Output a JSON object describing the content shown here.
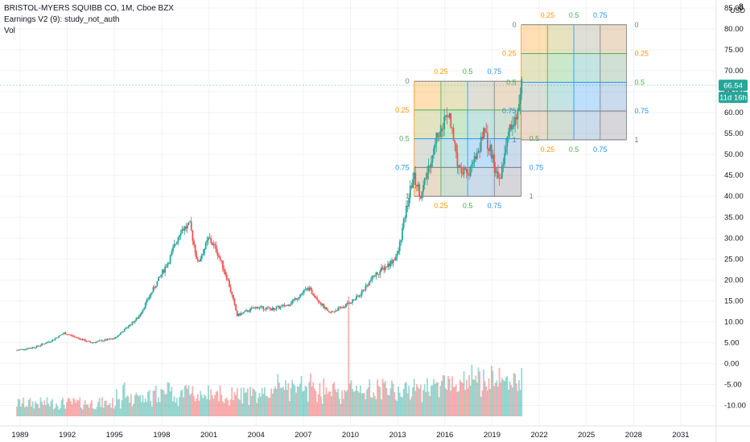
{
  "legend": {
    "line1": "BRISTOL-MYERS SQUIBB CO, 1M, Cboe BZX",
    "line2": "Earnings V2 (9): study_not_auth",
    "line3": "Vol"
  },
  "top_right": {
    "count": "8",
    "currency": "USD"
  },
  "price_badge": "66.54",
  "countdown_badge": "11d 16h",
  "colors": {
    "up": "#26a69a",
    "down": "#ef5350",
    "badge": "#26a69a",
    "grid": "#f0f3fa",
    "axis_text": "#131722",
    "fib_orange": "#ff9800",
    "fib_green": "#4caf50",
    "fib_blue": "#2196f3",
    "fib_gray": "#787b86"
  },
  "chart_data": {
    "type": "candlestick",
    "title": "BRISTOL-MYERS SQUIBB CO, 1M, Cboe BZX",
    "y_axis": {
      "ticks": [
        "85.00",
        "80.00",
        "75.00",
        "70.00",
        "65.00",
        "60.00",
        "55.00",
        "50.00",
        "45.00",
        "40.00",
        "35.00",
        "30.00",
        "25.00",
        "20.00",
        "15.00",
        "10.00",
        "5.00",
        "0.00",
        "-5.00",
        "-10.00"
      ],
      "range": [
        -14,
        86
      ]
    },
    "x_axis": {
      "ticks": [
        "1989",
        "1992",
        "1995",
        "1998",
        "2001",
        "2004",
        "2007",
        "2010",
        "2013",
        "2016",
        "2019",
        "2022",
        "2025",
        "2028",
        "2031"
      ],
      "range_years": [
        1988.7,
        2033.2
      ]
    },
    "last_price": 66.54,
    "price_anchors": [
      [
        1988.8,
        3.2
      ],
      [
        1990.0,
        4.0
      ],
      [
        1991.0,
        5.5
      ],
      [
        1991.8,
        7.3
      ],
      [
        1993.5,
        5.0
      ],
      [
        1995.0,
        6.0
      ],
      [
        1996.5,
        11.0
      ],
      [
        1997.5,
        18.0
      ],
      [
        1998.5,
        25.0
      ],
      [
        1999.2,
        32.0
      ],
      [
        1999.8,
        33.0
      ],
      [
        2000.3,
        24.0
      ],
      [
        2001.0,
        30.0
      ],
      [
        2001.5,
        27.0
      ],
      [
        2002.2,
        20.0
      ],
      [
        2002.8,
        11.5
      ],
      [
        2004.0,
        13.5
      ],
      [
        2005.0,
        13.0
      ],
      [
        2006.0,
        14.0
      ],
      [
        2007.3,
        18.0
      ],
      [
        2007.8,
        16.0
      ],
      [
        2008.6,
        12.0
      ],
      [
        2009.5,
        13.5
      ],
      [
        2010.5,
        16.0
      ],
      [
        2011.5,
        21.0
      ],
      [
        2012.5,
        24.0
      ],
      [
        2013.0,
        26.0
      ],
      [
        2013.5,
        36.0
      ],
      [
        2014.0,
        45.0
      ],
      [
        2014.5,
        40.0
      ],
      [
        2015.5,
        55.0
      ],
      [
        2016.3,
        60.0
      ],
      [
        2016.8,
        48.0
      ],
      [
        2017.5,
        45.0
      ],
      [
        2018.5,
        55.0
      ],
      [
        2019.0,
        50.0
      ],
      [
        2019.5,
        43.0
      ],
      [
        2020.0,
        55.0
      ],
      [
        2020.5,
        59.0
      ],
      [
        2020.9,
        66.5
      ]
    ],
    "volume_peaks": [
      [
        2009.9,
        16.0
      ],
      [
        2019.0,
        -0.5
      ],
      [
        2019.5,
        -1.0
      ],
      [
        2018.8,
        -3.5
      ]
    ],
    "fib_boxes": [
      {
        "name": "fib-box-center",
        "x_range": [
          2014.05,
          2020.85
        ],
        "price_range": [
          40.0,
          67.5
        ],
        "levels": [
          "0",
          "0.25",
          "0.5",
          "0.75",
          "1"
        ],
        "time_labels": [
          "0.25",
          "0.5",
          "0.75"
        ],
        "right_labels": [
          "0.5",
          "0.75",
          "1"
        ]
      },
      {
        "name": "fib-box-projection",
        "x_range": [
          2020.85,
          2027.55
        ],
        "price_range": [
          53.5,
          81.0
        ],
        "levels": [
          "0",
          "0.25",
          "0.5",
          "0.75",
          "1"
        ],
        "time_labels": [
          "0.25",
          "0.5",
          "0.75"
        ]
      }
    ]
  }
}
